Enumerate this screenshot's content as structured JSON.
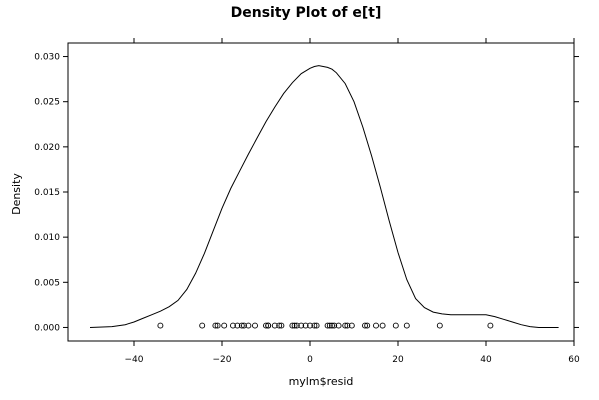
{
  "chart_data": {
    "type": "line",
    "title": "Density Plot of e[t]",
    "xlabel": "mylm$resid",
    "ylabel": "Density",
    "xlim": [
      -55,
      60
    ],
    "ylim": [
      -0.0015,
      0.0315
    ],
    "x_ticks": [
      -40,
      -20,
      0,
      20,
      40,
      60
    ],
    "x_tick_labels": [
      "−40",
      "−20",
      "0",
      "20",
      "40",
      "60"
    ],
    "y_ticks": [
      0.0,
      0.005,
      0.01,
      0.015,
      0.02,
      0.025,
      0.03
    ],
    "y_tick_labels": [
      "0.000",
      "0.005",
      "0.010",
      "0.015",
      "0.020",
      "0.025",
      "0.030"
    ],
    "grid": false,
    "series": [
      {
        "x": [
          -50,
          -45,
          -42,
          -40,
          -38,
          -36,
          -34,
          -32,
          -30,
          -28,
          -26,
          -24,
          -22,
          -20,
          -18,
          -16,
          -14,
          -12,
          -10,
          -8,
          -6,
          -4,
          -2,
          0,
          1,
          2,
          3,
          4,
          5,
          6,
          8,
          10,
          12,
          14,
          16,
          18,
          20,
          22,
          24,
          26,
          28,
          30,
          32,
          34,
          36,
          38,
          40,
          42,
          44,
          46,
          48,
          50,
          52,
          54,
          56.5
        ],
        "y": [
          0.0,
          0.0001,
          0.0003,
          0.0006,
          0.001,
          0.0014,
          0.0018,
          0.0023,
          0.003,
          0.0042,
          0.006,
          0.0082,
          0.0107,
          0.0132,
          0.0154,
          0.0173,
          0.0192,
          0.021,
          0.0228,
          0.0244,
          0.0259,
          0.0271,
          0.0281,
          0.0287,
          0.0289,
          0.029,
          0.0289,
          0.0288,
          0.0286,
          0.0282,
          0.027,
          0.025,
          0.0222,
          0.019,
          0.0155,
          0.0118,
          0.0083,
          0.0053,
          0.0032,
          0.0022,
          0.0017,
          0.0015,
          0.0014,
          0.0014,
          0.0014,
          0.0014,
          0.0014,
          0.0012,
          0.0009,
          0.0006,
          0.0003,
          0.0001,
          0.0,
          0.0,
          0.0
        ]
      }
    ],
    "points": {
      "y": 0.0002,
      "x": [
        -34,
        -24.5,
        -21.5,
        -21,
        -19.5,
        -17.5,
        -16.5,
        -15.5,
        -15,
        -14,
        -12.5,
        -10,
        -9.5,
        -9.5,
        -8,
        -7,
        -6.5,
        -4,
        -3.5,
        -3,
        -2,
        -1,
        0,
        1,
        1.5,
        4,
        4.5,
        5,
        5.5,
        6.5,
        8,
        8.5,
        9.5,
        12.5,
        13,
        15,
        16.5,
        19.5,
        22,
        29.5,
        41
      ]
    }
  }
}
